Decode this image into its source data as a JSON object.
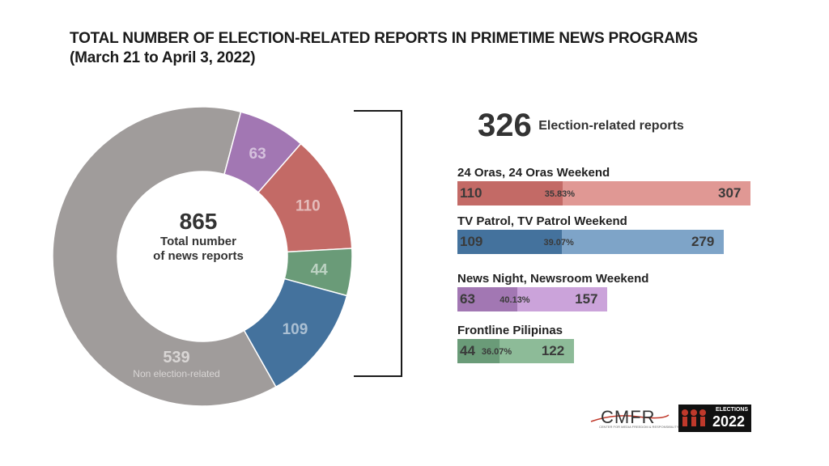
{
  "title": {
    "line1": "TOTAL NUMBER OF  ELECTION-RELATED REPORTS IN PRIMETIME NEWS PROGRAMS",
    "line2": "(March 21 to April 3, 2022)"
  },
  "center": {
    "total": "865",
    "label_line1": "Total number",
    "label_line2": "of news reports"
  },
  "summary": {
    "count": "326",
    "label": "Election-related reports"
  },
  "chart_data": [
    {
      "type": "pie",
      "donut": true,
      "slices": [
        {
          "label": "Non election-related",
          "value": 539,
          "display": "539",
          "color": "#a09c9b"
        },
        {
          "label": "",
          "value": 63,
          "display": "63",
          "color": "#a277b3"
        },
        {
          "label": "",
          "value": 110,
          "display": "110",
          "color": "#c36a66"
        },
        {
          "label": "",
          "value": 44,
          "display": "44",
          "color": "#6a9b78"
        },
        {
          "label": "",
          "value": 109,
          "display": "109",
          "color": "#44729d"
        }
      ]
    },
    {
      "type": "bar",
      "orientation": "horizontal",
      "stacked_overlay": true,
      "series": [
        {
          "name": "24 Oras, 24 Oras Weekend",
          "election_related": 110,
          "total": 307,
          "percent": "35.83%",
          "color_total": "#e09894",
          "color_part": "#c36a66"
        },
        {
          "name": "TV Patrol, TV Patrol Weekend",
          "election_related": 109,
          "total": 279,
          "percent": "39.07%",
          "color_total": "#7ea4c8",
          "color_part": "#44729d"
        },
        {
          "name": "News Night, Newsroom Weekend",
          "election_related": 63,
          "total": 157,
          "percent": "40.13%",
          "color_total": "#cba3da",
          "color_part": "#a277b3"
        },
        {
          "name": "Frontline Pilipinas",
          "election_related": 44,
          "total": 122,
          "percent": "36.07%",
          "color_total": "#8dbb98",
          "color_part": "#6a9b78"
        }
      ]
    }
  ],
  "logos": {
    "cmfr": {
      "letters": "CMFR",
      "tagline": "CENTER FOR MEDIA FREEDOM & RESPONSIBILITY"
    },
    "media_elections": {
      "text": "ELECTIONS",
      "year": "2022",
      "side": "MEDIA"
    }
  }
}
